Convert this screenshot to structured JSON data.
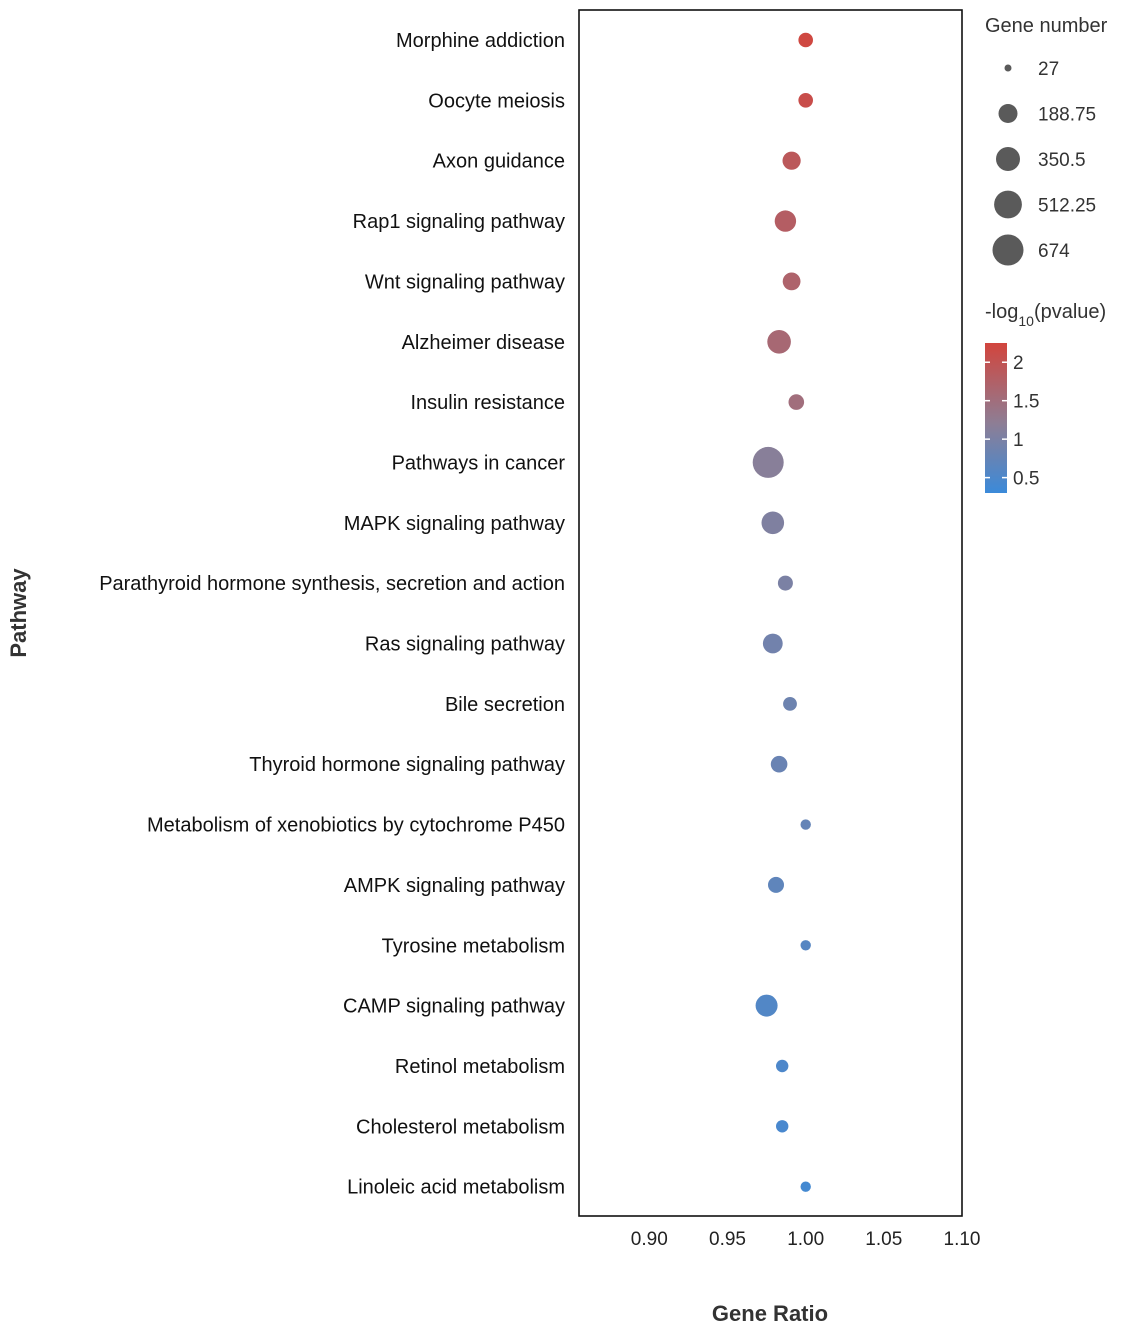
{
  "chart_data": {
    "type": "scatter",
    "title": "",
    "xlabel": "Gene Ratio",
    "ylabel": "Pathway",
    "xlim": [
      0.855,
      1.1
    ],
    "xticks": [
      "0.90",
      "0.95",
      "1.00",
      "1.05",
      "1.10"
    ],
    "xtick_values": [
      0.9,
      0.95,
      1.0,
      1.05,
      1.1
    ],
    "points": [
      {
        "pathway": "Morphine addiction",
        "gene_ratio": 1.0,
        "gene_number": 91,
        "neg_log10_p": 2.2
      },
      {
        "pathway": "Oocyte meiosis",
        "gene_ratio": 1.0,
        "gene_number": 91,
        "neg_log10_p": 2.1
      },
      {
        "pathway": "Axon guidance",
        "gene_ratio": 0.991,
        "gene_number": 170,
        "neg_log10_p": 1.9
      },
      {
        "pathway": "Rap1 signaling pathway",
        "gene_ratio": 0.987,
        "gene_number": 260,
        "neg_log10_p": 1.8
      },
      {
        "pathway": "Wnt signaling pathway",
        "gene_ratio": 0.991,
        "gene_number": 160,
        "neg_log10_p": 1.7
      },
      {
        "pathway": "Alzheimer disease",
        "gene_ratio": 0.983,
        "gene_number": 340,
        "neg_log10_p": 1.6
      },
      {
        "pathway": "Insulin resistance",
        "gene_ratio": 0.994,
        "gene_number": 110,
        "neg_log10_p": 1.5
      },
      {
        "pathway": "Pathways in cancer",
        "gene_ratio": 0.976,
        "gene_number": 674,
        "neg_log10_p": 1.15
      },
      {
        "pathway": "MAPK signaling pathway",
        "gene_ratio": 0.979,
        "gene_number": 300,
        "neg_log10_p": 1.05
      },
      {
        "pathway": "Parathyroid hormone synthesis, secretion and action",
        "gene_ratio": 0.987,
        "gene_number": 100,
        "neg_log10_p": 1.0
      },
      {
        "pathway": "Ras signaling pathway",
        "gene_ratio": 0.979,
        "gene_number": 210,
        "neg_log10_p": 0.9
      },
      {
        "pathway": "Bile secretion",
        "gene_ratio": 0.99,
        "gene_number": 80,
        "neg_log10_p": 0.85
      },
      {
        "pathway": "Thyroid hormone signaling pathway",
        "gene_ratio": 0.983,
        "gene_number": 130,
        "neg_log10_p": 0.8
      },
      {
        "pathway": "Metabolism of xenobiotics by cytochrome P450",
        "gene_ratio": 1.0,
        "gene_number": 40,
        "neg_log10_p": 0.75
      },
      {
        "pathway": "AMPK signaling pathway",
        "gene_ratio": 0.981,
        "gene_number": 120,
        "neg_log10_p": 0.7
      },
      {
        "pathway": "Tyrosine metabolism",
        "gene_ratio": 1.0,
        "gene_number": 40,
        "neg_log10_p": 0.6
      },
      {
        "pathway": "CAMP signaling pathway",
        "gene_ratio": 0.975,
        "gene_number": 280,
        "neg_log10_p": 0.55
      },
      {
        "pathway": "Retinol metabolism",
        "gene_ratio": 0.985,
        "gene_number": 60,
        "neg_log10_p": 0.5
      },
      {
        "pathway": "Cholesterol metabolism",
        "gene_ratio": 0.985,
        "gene_number": 60,
        "neg_log10_p": 0.45
      },
      {
        "pathway": "Linoleic acid metabolism",
        "gene_ratio": 1.0,
        "gene_number": 40,
        "neg_log10_p": 0.4
      }
    ],
    "size_legend": {
      "title": "Gene number",
      "values": [
        27,
        188.75,
        350.5,
        512.25,
        674
      ],
      "labels": [
        "27",
        "188.75",
        "350.5",
        "512.25",
        "674"
      ]
    },
    "color_legend": {
      "title_prefix": "-log",
      "title_sub": "10",
      "title_suffix": "(pvalue)",
      "min": 0.3,
      "max": 2.25,
      "ticks": [
        2,
        1.5,
        1,
        0.5
      ],
      "tick_labels": [
        "2",
        "1.5",
        "1",
        "0.5"
      ],
      "low_color": "#3b8ad9",
      "mid_color": "#8d7e95",
      "high_color": "#d2453d"
    },
    "marker_color_mid_value": 1.2
  }
}
